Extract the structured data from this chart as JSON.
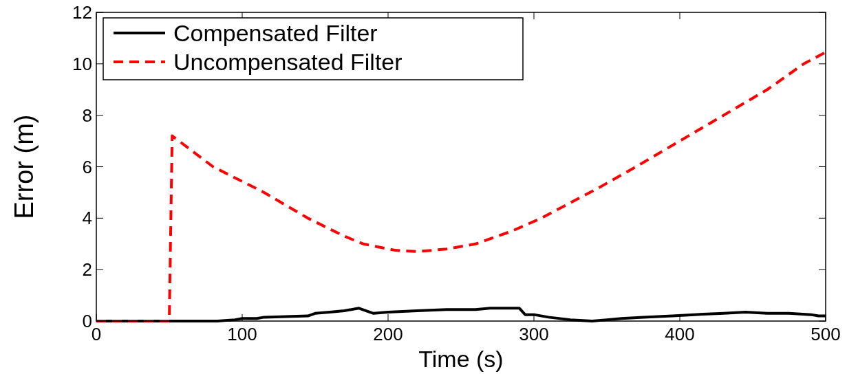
{
  "chart_data": {
    "type": "line",
    "xlabel": "Time (s)",
    "ylabel": "Error (m)",
    "xlim": [
      0,
      500
    ],
    "ylim": [
      0,
      12
    ],
    "xticks": [
      0,
      100,
      200,
      300,
      400,
      500
    ],
    "yticks": [
      0,
      2,
      4,
      6,
      8,
      10,
      12
    ],
    "legend": "top left",
    "grid": false,
    "series": [
      {
        "name": "Compensated Filter",
        "color": "#000000",
        "line_style": "solid",
        "x": [
          0,
          50,
          83,
          95,
          100,
          110,
          115,
          145,
          150,
          160,
          170,
          180,
          185,
          190,
          200,
          220,
          240,
          260,
          270,
          290,
          294,
          300,
          310,
          325,
          340,
          350,
          360,
          375,
          395,
          410,
          430,
          445,
          460,
          475,
          490,
          495,
          500
        ],
        "values": [
          0,
          0,
          0,
          0.05,
          0.1,
          0.1,
          0.15,
          0.2,
          0.3,
          0.35,
          0.4,
          0.5,
          0.4,
          0.3,
          0.35,
          0.4,
          0.45,
          0.45,
          0.5,
          0.5,
          0.25,
          0.25,
          0.15,
          0.05,
          0,
          0.05,
          0.1,
          0.15,
          0.2,
          0.25,
          0.3,
          0.35,
          0.3,
          0.3,
          0.25,
          0.2,
          0.2
        ]
      },
      {
        "name": "Uncompensated Filter",
        "color": "#ff0000",
        "line_style": "dashed",
        "x": [
          0,
          50,
          51,
          52,
          80,
          115,
          145,
          170,
          183,
          205,
          220,
          240,
          260,
          285,
          305,
          325,
          345,
          370,
          400,
          430,
          460,
          485,
          500
        ],
        "values": [
          0,
          0,
          3.6,
          7.2,
          6,
          5,
          4,
          3.3,
          3,
          2.75,
          2.7,
          2.8,
          3,
          3.5,
          4,
          4.6,
          5.2,
          6,
          7,
          8,
          9,
          10,
          10.45
        ]
      }
    ]
  }
}
